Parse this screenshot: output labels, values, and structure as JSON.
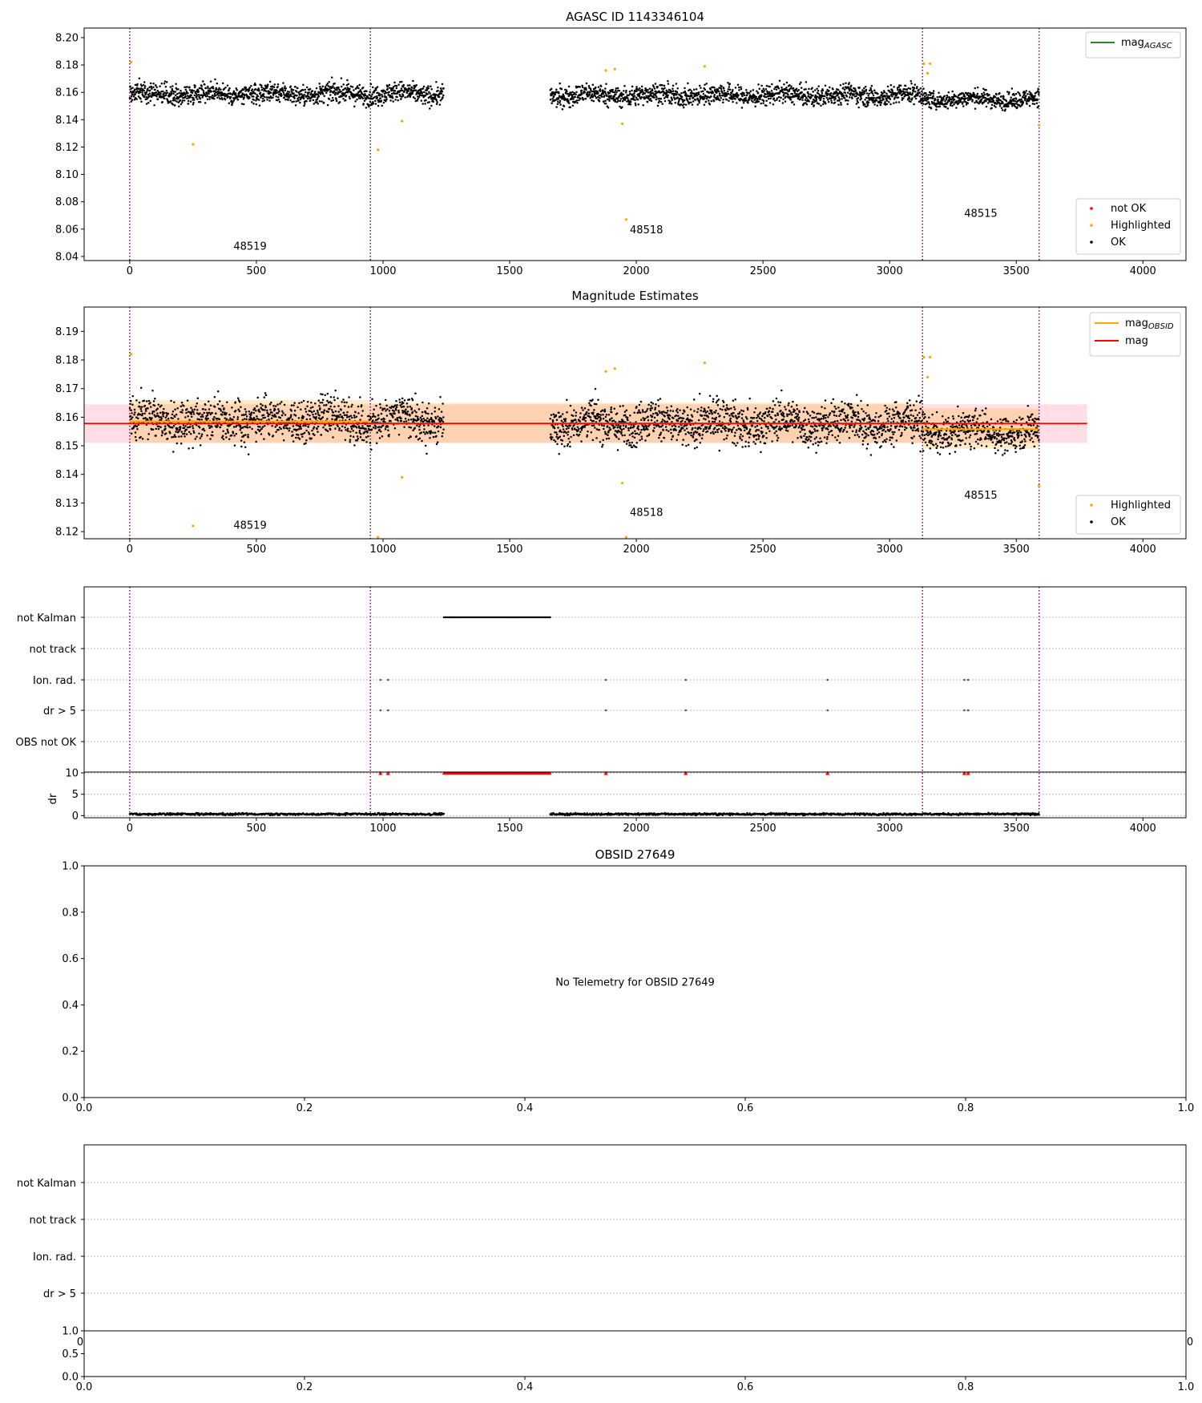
{
  "chart_data": [
    {
      "type": "scatter",
      "title": "AGASC ID 1143346104",
      "xlim": [
        -180,
        4170
      ],
      "ylim": [
        8.037,
        8.207
      ],
      "xticks": [
        0,
        500,
        1000,
        1500,
        2000,
        2500,
        3000,
        3500,
        4000
      ],
      "xtick_labels": [
        "0",
        "500",
        "1000",
        "1500",
        "2000",
        "2500",
        "3000",
        "3500",
        "4000"
      ],
      "yticks": [
        8.04,
        8.06,
        8.08,
        8.1,
        8.12,
        8.14,
        8.16,
        8.18,
        8.2
      ],
      "ytick_labels": [
        "8.04",
        "8.06",
        "8.08",
        "8.10",
        "8.12",
        "8.14",
        "8.16",
        "8.18",
        "8.20"
      ],
      "obs_boundaries": [
        0,
        950,
        3130,
        3590
      ],
      "obsid_labels": [
        {
          "text": "48519",
          "x": 475,
          "y": 8.045
        },
        {
          "text": "48518",
          "x": 2040,
          "y": 8.057
        },
        {
          "text": "48515",
          "x": 3360,
          "y": 8.069
        }
      ],
      "ok_segments": [
        {
          "x0": 0,
          "x1": 1240,
          "y": 8.159,
          "noise": 0.0065
        },
        {
          "x0": 1660,
          "x1": 3130,
          "y": 8.158,
          "noise": 0.0065
        },
        {
          "x0": 3130,
          "x1": 3590,
          "y": 8.155,
          "noise": 0.0055
        }
      ],
      "highlighted_points": [
        [
          5,
          8.182
        ],
        [
          250,
          8.122
        ],
        [
          980,
          8.118
        ],
        [
          1075,
          8.139
        ],
        [
          1880,
          8.176
        ],
        [
          1915,
          8.177
        ],
        [
          1945,
          8.137
        ],
        [
          1960,
          8.067
        ],
        [
          2270,
          8.179
        ],
        [
          3135,
          8.181
        ],
        [
          3150,
          8.174
        ],
        [
          3160,
          8.181
        ],
        [
          3590,
          8.136
        ]
      ],
      "legend_lines": [
        {
          "name": "mag_AGASC",
          "color": "#228b22"
        }
      ],
      "legend_markers": [
        {
          "name": "not OK",
          "color": "#ff0000"
        },
        {
          "name": "Highlighted",
          "color": "#ffa500"
        },
        {
          "name": "OK",
          "color": "#000000"
        }
      ]
    },
    {
      "type": "scatter",
      "title": "Magnitude Estimates",
      "xlim": [
        -180,
        4170
      ],
      "ylim": [
        8.1175,
        8.1985
      ],
      "xticks": [
        0,
        500,
        1000,
        1500,
        2000,
        2500,
        3000,
        3500,
        4000
      ],
      "xtick_labels": [
        "0",
        "500",
        "1000",
        "1500",
        "2000",
        "2500",
        "3000",
        "3500",
        "4000"
      ],
      "yticks": [
        8.12,
        8.13,
        8.14,
        8.15,
        8.16,
        8.17,
        8.18,
        8.19
      ],
      "ytick_labels": [
        "8.12",
        "8.13",
        "8.14",
        "8.15",
        "8.16",
        "8.17",
        "8.18",
        "8.19"
      ],
      "obs_boundaries": [
        0,
        950,
        3130,
        3590
      ],
      "obsid_labels": [
        {
          "text": "48519",
          "x": 475,
          "y": 8.121
        },
        {
          "text": "48518",
          "x": 2040,
          "y": 8.1255
        },
        {
          "text": "48515",
          "x": 3360,
          "y": 8.1315
        }
      ],
      "mag": 8.1578,
      "mag_band": [
        8.151,
        8.1645
      ],
      "mag_band_x": [
        -180,
        3780
      ],
      "mag_obsid": [
        {
          "x0": 0,
          "x1": 950,
          "y": 8.1585,
          "lo": 8.151,
          "hi": 8.166
        },
        {
          "x0": 950,
          "x1": 3130,
          "y": 8.1578,
          "lo": 8.151,
          "hi": 8.165
        },
        {
          "x0": 3130,
          "x1": 3590,
          "y": 8.1558,
          "lo": 8.149,
          "hi": 8.163
        }
      ],
      "ok_segments": [
        {
          "x0": 0,
          "x1": 1240,
          "y": 8.159,
          "noise": 0.0065
        },
        {
          "x0": 1660,
          "x1": 3130,
          "y": 8.158,
          "noise": 0.0065
        },
        {
          "x0": 3130,
          "x1": 3590,
          "y": 8.155,
          "noise": 0.0055
        }
      ],
      "highlighted_points": [
        [
          5,
          8.182
        ],
        [
          250,
          8.122
        ],
        [
          980,
          8.118
        ],
        [
          1075,
          8.139
        ],
        [
          1880,
          8.176
        ],
        [
          1915,
          8.177
        ],
        [
          1945,
          8.137
        ],
        [
          1960,
          8.118
        ],
        [
          2270,
          8.179
        ],
        [
          3135,
          8.181
        ],
        [
          3150,
          8.174
        ],
        [
          3160,
          8.181
        ],
        [
          3590,
          8.136
        ]
      ],
      "legend_lines": [
        {
          "name": "mag_OBSID",
          "color": "#ffa500"
        },
        {
          "name": "mag",
          "color": "#ff0000"
        }
      ],
      "legend_markers": [
        {
          "name": "Highlighted",
          "color": "#ffa500"
        },
        {
          "name": "OK",
          "color": "#000000"
        }
      ]
    },
    {
      "type": "scatter",
      "title": "",
      "xlim": [
        -180,
        4170
      ],
      "xticks": [
        0,
        500,
        1000,
        1500,
        2000,
        2500,
        3000,
        3500,
        4000
      ],
      "xtick_labels": [
        "0",
        "500",
        "1000",
        "1500",
        "2000",
        "2500",
        "3000",
        "3500",
        "4000"
      ],
      "flag_rows": [
        "not Kalman",
        "not track",
        "Ion. rad.",
        "dr > 5",
        "OBS not OK"
      ],
      "obs_boundaries": [
        0,
        950,
        3130,
        3590
      ],
      "not_kalman_range": [
        1240,
        1660
      ],
      "ion_rad_x": [
        990,
        1020,
        1880,
        2195,
        2755,
        3295,
        3310
      ],
      "dr_gt_5_x": [
        990,
        1020,
        1880,
        2195,
        2755,
        3295,
        3310
      ],
      "dr_ylabel": "dr",
      "dr_ylim": [
        -0.5,
        10.2
      ],
      "dr_yticks": [
        0,
        5,
        10
      ],
      "dr_ytick_labels": [
        "0",
        "5",
        "10"
      ],
      "dr_segments": [
        {
          "x0": 0,
          "x1": 1240,
          "y": 0.35
        },
        {
          "x0": 1660,
          "x1": 3590,
          "y": 0.35
        }
      ],
      "dr_high_x": [
        990,
        1020,
        1880,
        2195,
        2755,
        3295,
        3310
      ]
    },
    {
      "type": "scatter",
      "title": "OBSID 27649",
      "message": "No Telemetry for OBSID 27649",
      "xlim": [
        0,
        1
      ],
      "ylim": [
        0,
        1
      ],
      "xticks": [
        0,
        0.2,
        0.4,
        0.6,
        0.8,
        1
      ],
      "xtick_labels": [
        "0.0",
        "0.2",
        "0.4",
        "0.6",
        "0.8",
        "1.0"
      ],
      "yticks": [
        0,
        0.2,
        0.4,
        0.6,
        0.8,
        1
      ],
      "ytick_labels": [
        "0.0",
        "0.2",
        "0.4",
        "0.6",
        "0.8",
        "1.0"
      ]
    },
    {
      "type": "scatter",
      "title": "",
      "flag_rows": [
        "not Kalman",
        "not track",
        "Ion. rad.",
        "dr > 5"
      ],
      "xlim": [
        0,
        1
      ],
      "xticks": [
        0,
        0.2,
        0.4,
        0.6,
        0.8,
        1
      ],
      "xtick_labels": [
        "0.0",
        "0.2",
        "0.4",
        "0.6",
        "0.8",
        "1.0"
      ],
      "small_yticks": [
        0,
        0.5,
        1
      ],
      "small_ytick_labels": [
        "0.0",
        "0.5",
        "1.0"
      ],
      "partial_xtick_labels": [
        "0",
        "0"
      ]
    }
  ]
}
